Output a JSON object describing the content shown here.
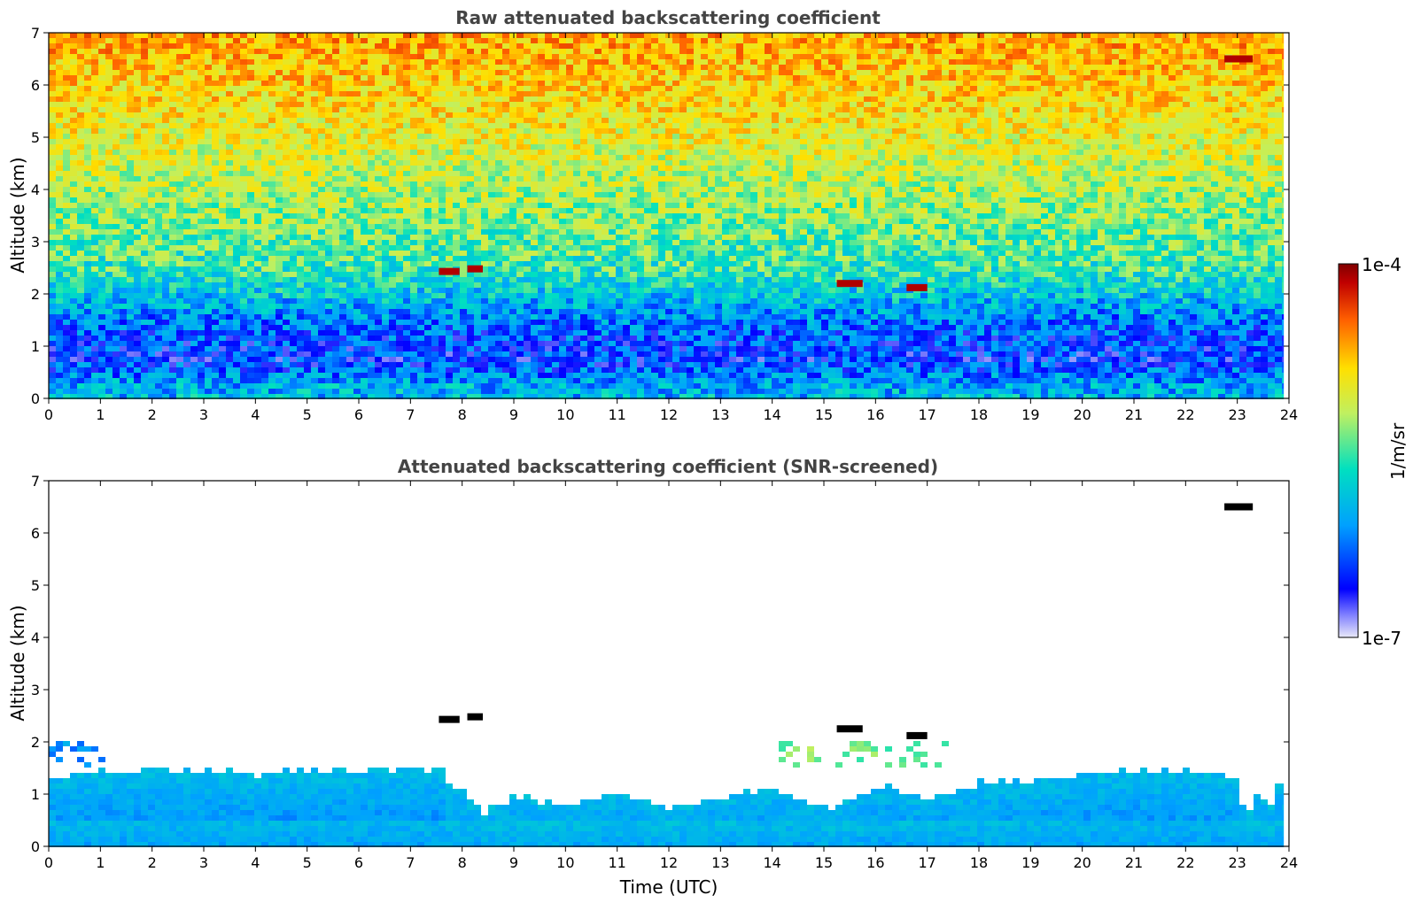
{
  "chart_data": [
    {
      "type": "heatmap",
      "title": "Raw attenuated backscattering coefficient",
      "xlabel": "",
      "ylabel": "Altitude (km)",
      "xlim": [
        0,
        24
      ],
      "ylim": [
        0,
        7
      ],
      "x_ticks": [
        "0",
        "1",
        "2",
        "3",
        "4",
        "5",
        "6",
        "7",
        "8",
        "9",
        "10",
        "11",
        "12",
        "13",
        "14",
        "15",
        "16",
        "17",
        "18",
        "19",
        "20",
        "21",
        "22",
        "23",
        "24"
      ],
      "y_ticks": [
        "0",
        "1",
        "2",
        "3",
        "4",
        "5",
        "6",
        "7"
      ],
      "data_extent_x": [
        0,
        23.9
      ],
      "background_profile": [
        {
          "alt_km": 0.0,
          "level": 0.3
        },
        {
          "alt_km": 0.3,
          "level": 0.28
        },
        {
          "alt_km": 0.8,
          "level": 0.15
        },
        {
          "alt_km": 1.5,
          "level": 0.22
        },
        {
          "alt_km": 2.5,
          "level": 0.4
        },
        {
          "alt_km": 4.0,
          "level": 0.5
        },
        {
          "alt_km": 5.5,
          "level": 0.6
        },
        {
          "alt_km": 7.0,
          "level": 0.68
        }
      ],
      "cloud_features": [
        {
          "time_start": 7.55,
          "time_end": 7.95,
          "alt_km": 2.43,
          "level": 0.98
        },
        {
          "time_start": 8.1,
          "time_end": 8.4,
          "alt_km": 2.48,
          "level": 0.98
        },
        {
          "time_start": 15.25,
          "time_end": 15.75,
          "alt_km": 2.2,
          "level": 0.95
        },
        {
          "time_start": 16.6,
          "time_end": 17.0,
          "alt_km": 2.12,
          "level": 0.97
        },
        {
          "time_start": 22.75,
          "time_end": 23.3,
          "alt_km": 6.5,
          "level": 0.98
        }
      ]
    },
    {
      "type": "heatmap",
      "title": "Attenuated backscattering coefficient (SNR-screened)",
      "xlabel": "Time (UTC)",
      "ylabel": "Altitude (km)",
      "xlim": [
        0,
        24
      ],
      "ylim": [
        0,
        7
      ],
      "x_ticks": [
        "0",
        "1",
        "2",
        "3",
        "4",
        "5",
        "6",
        "7",
        "8",
        "9",
        "10",
        "11",
        "12",
        "13",
        "14",
        "15",
        "16",
        "17",
        "18",
        "19",
        "20",
        "21",
        "22",
        "23",
        "24"
      ],
      "y_ticks": [
        "0",
        "1",
        "2",
        "3",
        "4",
        "5",
        "6",
        "7"
      ],
      "data_extent_x": [
        0,
        23.9
      ],
      "boundary_layer_top_km": [
        {
          "time": 0.0,
          "alt_km": 1.4
        },
        {
          "time": 2.0,
          "alt_km": 1.55
        },
        {
          "time": 4.0,
          "alt_km": 1.45
        },
        {
          "time": 6.0,
          "alt_km": 1.5
        },
        {
          "time": 7.5,
          "alt_km": 1.55
        },
        {
          "time": 8.0,
          "alt_km": 1.0
        },
        {
          "time": 8.4,
          "alt_km": 0.7
        },
        {
          "time": 9.0,
          "alt_km": 1.0
        },
        {
          "time": 10.0,
          "alt_km": 0.85
        },
        {
          "time": 11.0,
          "alt_km": 1.05
        },
        {
          "time": 12.0,
          "alt_km": 0.8
        },
        {
          "time": 13.0,
          "alt_km": 1.0
        },
        {
          "time": 14.0,
          "alt_km": 1.15
        },
        {
          "time": 15.0,
          "alt_km": 0.75
        },
        {
          "time": 16.0,
          "alt_km": 1.2
        },
        {
          "time": 17.0,
          "alt_km": 1.0
        },
        {
          "time": 18.0,
          "alt_km": 1.3
        },
        {
          "time": 19.0,
          "alt_km": 1.3
        },
        {
          "time": 20.0,
          "alt_km": 1.45
        },
        {
          "time": 21.0,
          "alt_km": 1.5
        },
        {
          "time": 22.0,
          "alt_km": 1.5
        },
        {
          "time": 22.9,
          "alt_km": 1.35
        },
        {
          "time": 23.1,
          "alt_km": 0.6
        },
        {
          "time": 23.4,
          "alt_km": 1.2
        },
        {
          "time": 23.55,
          "alt_km": 0.7
        },
        {
          "time": 23.75,
          "alt_km": 1.3
        },
        {
          "time": 23.9,
          "alt_km": 1.2
        }
      ],
      "aerosol_patches": [
        {
          "time_start": 14.0,
          "time_end": 17.3,
          "alt_start_km": 1.6,
          "alt_end_km": 2.1,
          "level": 0.45
        },
        {
          "time_start": 0.0,
          "time_end": 1.0,
          "alt_start_km": 1.6,
          "alt_end_km": 2.1,
          "level": 0.25
        }
      ],
      "cloud_features": [
        {
          "time_start": 7.55,
          "time_end": 7.95,
          "alt_km": 2.43,
          "level": 1.0
        },
        {
          "time_start": 8.1,
          "time_end": 8.4,
          "alt_km": 2.48,
          "level": 1.0
        },
        {
          "time_start": 15.25,
          "time_end": 15.75,
          "alt_km": 2.25,
          "level": 1.0
        },
        {
          "time_start": 16.6,
          "time_end": 17.0,
          "alt_km": 2.12,
          "level": 1.0
        },
        {
          "time_start": 22.75,
          "time_end": 23.3,
          "alt_km": 6.5,
          "level": 1.0
        }
      ]
    }
  ],
  "colorbar": {
    "label": "1/m/sr",
    "min_label": "1e-7",
    "max_label": "1e-4",
    "scale": "log",
    "colormap": "jet",
    "colors": [
      "#e8e8f8",
      "#0000ff",
      "#00a0ff",
      "#00e0c0",
      "#c0f060",
      "#ffe000",
      "#ff6000",
      "#b00000",
      "#800000"
    ]
  }
}
